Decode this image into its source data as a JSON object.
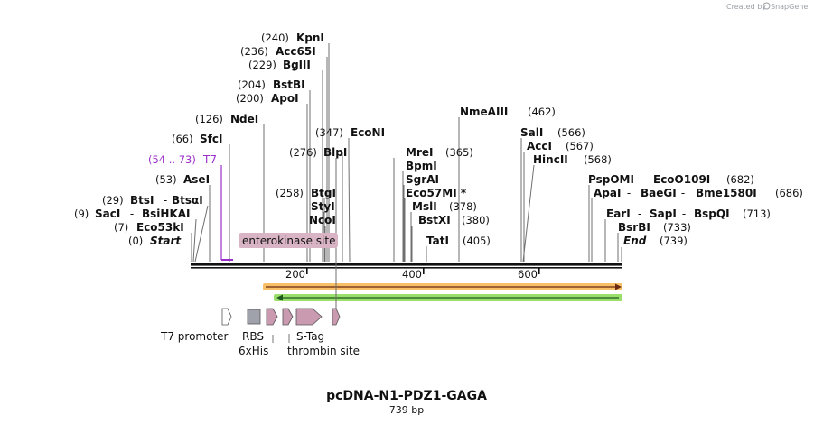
{
  "credit": {
    "text": "Created by",
    "brand": "SnapGene"
  },
  "title": "pcDNA-N1-PDZ1-GAGA",
  "length_label": "739 bp",
  "sequence_length": 739,
  "ruler_ticks": [
    {
      "value": 200,
      "label": "200"
    },
    {
      "value": 400,
      "label": "400"
    },
    {
      "value": 600,
      "label": "600"
    }
  ],
  "sites": [
    {
      "pos": "(240)",
      "name": "KpnI"
    },
    {
      "pos": "(236)",
      "name": "Acc65I"
    },
    {
      "pos": "(229)",
      "name": "BglII"
    },
    {
      "pos": "(204)",
      "name": "BstBI"
    },
    {
      "pos": "(200)",
      "name": "ApoI"
    },
    {
      "pos": "(126)",
      "name": "NdeI"
    },
    {
      "pos": "(66)",
      "name": "SfcI"
    },
    {
      "pos": "(54 .. 73)",
      "name": "T7"
    },
    {
      "pos": "(53)",
      "name": "AseI"
    },
    {
      "pos": "(29)",
      "name": "BtsI",
      "sep": " - ",
      "name2": "BtsαI"
    },
    {
      "pos": "(9)",
      "name": "SacI",
      "sep": " - ",
      "name2": "BsiHKAI"
    },
    {
      "pos": "(7)",
      "name": "Eco53kI"
    },
    {
      "pos": "(0)",
      "name": "Start"
    },
    {
      "pos": "(347)",
      "name": "EcoNI"
    },
    {
      "pos": "(276)",
      "name": "BlpI"
    },
    {
      "pos": "(258)",
      "name": "BtgI"
    },
    {
      "name": "StyI"
    },
    {
      "name": "NcoI"
    },
    {
      "pos": "(462)",
      "name": "NmeAIII"
    },
    {
      "pos": "(365)",
      "name": "MreI"
    },
    {
      "name": "BpmI"
    },
    {
      "name": "SgrAI"
    },
    {
      "name": "Eco57MI *"
    },
    {
      "pos": "(378)",
      "name": "MslI"
    },
    {
      "pos": "(380)",
      "name": "BstXI"
    },
    {
      "pos": "(405)",
      "name": "TatI"
    },
    {
      "pos": "(566)",
      "name": "SalI"
    },
    {
      "pos": "(567)",
      "name": "AccI"
    },
    {
      "pos": "(568)",
      "name": "HincII"
    },
    {
      "pos": "(682)",
      "name": "PspOMI",
      "sep": " - ",
      "name2": "EcoO109I"
    },
    {
      "pos": "(686)",
      "name": "ApaI",
      "sep": " - ",
      "name2": "BaeGI",
      "sep2": " - ",
      "name3": "Bme1580I"
    },
    {
      "pos": "(713)",
      "name": "EarI",
      "sep": " - ",
      "name2": "SapI",
      "sep2": " - ",
      "name3": "BspQI"
    },
    {
      "pos": "(733)",
      "name": "BsrBI"
    },
    {
      "pos": "(739)",
      "name": "End"
    }
  ],
  "features": [
    {
      "label": "enterokinase site"
    },
    {
      "label": "T7 promoter"
    },
    {
      "label": "RBS"
    },
    {
      "label": "6xHis"
    },
    {
      "label": "S-Tag"
    },
    {
      "label": "thrombin site"
    }
  ],
  "colors": {
    "t7": "#9b30c8",
    "orf_orange": "#f6b44b",
    "orf_green": "#8fda5c",
    "feature_pink": "#c99ab0",
    "rbs_gray": "#9fa2aa",
    "enterokinase_bg": "#d8b4c4"
  }
}
